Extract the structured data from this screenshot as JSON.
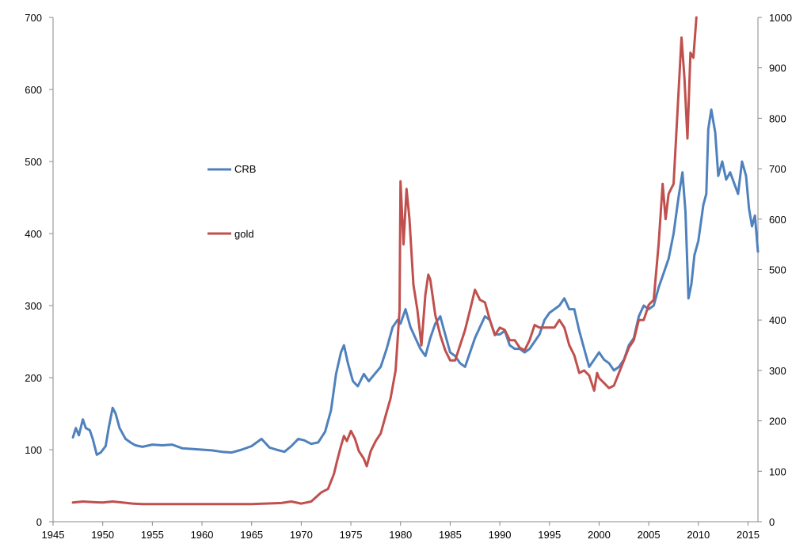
{
  "chart_data": {
    "type": "line",
    "title": "",
    "xlabel": "",
    "ylabel_left": "",
    "ylabel_right": "",
    "grid": false,
    "legend_placement": "inside-left",
    "xlim": [
      1945,
      2016
    ],
    "ylim_left": [
      0,
      700
    ],
    "ylim_right": [
      0,
      1000
    ],
    "x_ticks": [
      1945,
      1950,
      1955,
      1960,
      1965,
      1970,
      1975,
      1980,
      1985,
      1990,
      1995,
      2000,
      2005,
      2010,
      2015
    ],
    "y_left_ticks": [
      0,
      100,
      200,
      300,
      400,
      500,
      600,
      700
    ],
    "y_right_ticks": [
      0,
      100,
      200,
      300,
      400,
      500,
      600,
      700,
      800,
      900,
      1000
    ],
    "series": [
      {
        "name": "CRB",
        "axis": "left",
        "color": "#4f81bd",
        "points": [
          [
            1947.0,
            117
          ],
          [
            1947.3,
            130
          ],
          [
            1947.6,
            120
          ],
          [
            1948.0,
            142
          ],
          [
            1948.3,
            130
          ],
          [
            1948.7,
            127
          ],
          [
            1949.0,
            115
          ],
          [
            1949.4,
            93
          ],
          [
            1949.8,
            96
          ],
          [
            1950.3,
            105
          ],
          [
            1950.6,
            130
          ],
          [
            1951.0,
            158
          ],
          [
            1951.3,
            150
          ],
          [
            1951.7,
            130
          ],
          [
            1952.3,
            115
          ],
          [
            1952.8,
            110
          ],
          [
            1953.3,
            106
          ],
          [
            1954.0,
            104
          ],
          [
            1955.0,
            107
          ],
          [
            1956.0,
            106
          ],
          [
            1957.0,
            107
          ],
          [
            1958.0,
            102
          ],
          [
            1959.0,
            101
          ],
          [
            1960.0,
            100
          ],
          [
            1961.0,
            99
          ],
          [
            1962.0,
            97
          ],
          [
            1963.0,
            96
          ],
          [
            1964.0,
            100
          ],
          [
            1965.0,
            105
          ],
          [
            1966.0,
            115
          ],
          [
            1966.8,
            103
          ],
          [
            1967.5,
            100
          ],
          [
            1968.3,
            97
          ],
          [
            1969.0,
            105
          ],
          [
            1969.7,
            115
          ],
          [
            1970.3,
            113
          ],
          [
            1971.0,
            108
          ],
          [
            1971.7,
            110
          ],
          [
            1972.4,
            125
          ],
          [
            1973.0,
            155
          ],
          [
            1973.5,
            205
          ],
          [
            1974.0,
            235
          ],
          [
            1974.3,
            245
          ],
          [
            1974.7,
            220
          ],
          [
            1975.2,
            195
          ],
          [
            1975.7,
            188
          ],
          [
            1976.3,
            205
          ],
          [
            1976.8,
            195
          ],
          [
            1977.4,
            205
          ],
          [
            1978.0,
            215
          ],
          [
            1978.6,
            240
          ],
          [
            1979.2,
            270
          ],
          [
            1979.7,
            280
          ],
          [
            1980.0,
            275
          ],
          [
            1980.5,
            295
          ],
          [
            1981.0,
            270
          ],
          [
            1981.5,
            255
          ],
          [
            1982.0,
            240
          ],
          [
            1982.5,
            230
          ],
          [
            1983.0,
            255
          ],
          [
            1983.5,
            275
          ],
          [
            1984.0,
            285
          ],
          [
            1984.5,
            260
          ],
          [
            1985.0,
            235
          ],
          [
            1985.5,
            230
          ],
          [
            1986.0,
            220
          ],
          [
            1986.5,
            215
          ],
          [
            1987.0,
            235
          ],
          [
            1987.5,
            255
          ],
          [
            1988.0,
            270
          ],
          [
            1988.5,
            285
          ],
          [
            1989.0,
            280
          ],
          [
            1989.5,
            260
          ],
          [
            1990.0,
            260
          ],
          [
            1990.5,
            265
          ],
          [
            1991.0,
            245
          ],
          [
            1991.5,
            240
          ],
          [
            1992.0,
            240
          ],
          [
            1992.5,
            235
          ],
          [
            1993.0,
            240
          ],
          [
            1993.5,
            250
          ],
          [
            1994.0,
            260
          ],
          [
            1994.5,
            280
          ],
          [
            1995.0,
            290
          ],
          [
            1995.5,
            295
          ],
          [
            1996.0,
            300
          ],
          [
            1996.5,
            310
          ],
          [
            1997.0,
            295
          ],
          [
            1997.5,
            295
          ],
          [
            1998.0,
            265
          ],
          [
            1998.5,
            240
          ],
          [
            1999.0,
            215
          ],
          [
            1999.5,
            225
          ],
          [
            2000.0,
            235
          ],
          [
            2000.5,
            225
          ],
          [
            2001.0,
            220
          ],
          [
            2001.5,
            210
          ],
          [
            2002.0,
            215
          ],
          [
            2002.5,
            225
          ],
          [
            2003.0,
            245
          ],
          [
            2003.5,
            255
          ],
          [
            2004.0,
            285
          ],
          [
            2004.5,
            300
          ],
          [
            2005.0,
            295
          ],
          [
            2005.5,
            300
          ],
          [
            2006.0,
            325
          ],
          [
            2006.5,
            345
          ],
          [
            2007.0,
            365
          ],
          [
            2007.5,
            400
          ],
          [
            2008.0,
            450
          ],
          [
            2008.4,
            485
          ],
          [
            2008.7,
            430
          ],
          [
            2009.0,
            310
          ],
          [
            2009.3,
            330
          ],
          [
            2009.6,
            370
          ],
          [
            2010.0,
            390
          ],
          [
            2010.5,
            440
          ],
          [
            2010.8,
            455
          ],
          [
            2011.0,
            545
          ],
          [
            2011.3,
            572
          ],
          [
            2011.7,
            540
          ],
          [
            2012.0,
            480
          ],
          [
            2012.4,
            500
          ],
          [
            2012.8,
            475
          ],
          [
            2013.2,
            485
          ],
          [
            2013.6,
            470
          ],
          [
            2014.0,
            455
          ],
          [
            2014.4,
            500
          ],
          [
            2014.8,
            480
          ],
          [
            2015.1,
            435
          ],
          [
            2015.4,
            410
          ],
          [
            2015.7,
            425
          ],
          [
            2016.0,
            375
          ]
        ]
      },
      {
        "name": "gold",
        "axis": "right",
        "color": "#c0504d",
        "points": [
          [
            1947.0,
            38
          ],
          [
            1948.0,
            40
          ],
          [
            1949.0,
            39
          ],
          [
            1950.0,
            38
          ],
          [
            1951.0,
            40
          ],
          [
            1952.0,
            38
          ],
          [
            1953.0,
            36
          ],
          [
            1954.0,
            35
          ],
          [
            1955.0,
            35
          ],
          [
            1960.0,
            35
          ],
          [
            1965.0,
            35
          ],
          [
            1968.0,
            37
          ],
          [
            1969.0,
            40
          ],
          [
            1970.0,
            36
          ],
          [
            1971.0,
            40
          ],
          [
            1972.0,
            58
          ],
          [
            1972.7,
            65
          ],
          [
            1973.3,
            95
          ],
          [
            1973.6,
            120
          ],
          [
            1974.0,
            150
          ],
          [
            1974.3,
            170
          ],
          [
            1974.6,
            160
          ],
          [
            1975.0,
            180
          ],
          [
            1975.4,
            165
          ],
          [
            1975.8,
            140
          ],
          [
            1976.3,
            125
          ],
          [
            1976.6,
            110
          ],
          [
            1977.0,
            140
          ],
          [
            1977.5,
            160
          ],
          [
            1978.0,
            175
          ],
          [
            1978.5,
            210
          ],
          [
            1979.0,
            245
          ],
          [
            1979.5,
            300
          ],
          [
            1979.9,
            420
          ],
          [
            1980.0,
            675
          ],
          [
            1980.3,
            550
          ],
          [
            1980.6,
            660
          ],
          [
            1980.9,
            600
          ],
          [
            1981.3,
            470
          ],
          [
            1981.7,
            420
          ],
          [
            1982.1,
            350
          ],
          [
            1982.5,
            450
          ],
          [
            1982.8,
            490
          ],
          [
            1983.0,
            480
          ],
          [
            1983.5,
            410
          ],
          [
            1984.0,
            370
          ],
          [
            1984.5,
            340
          ],
          [
            1985.0,
            320
          ],
          [
            1985.5,
            320
          ],
          [
            1986.0,
            350
          ],
          [
            1986.5,
            380
          ],
          [
            1987.0,
            420
          ],
          [
            1987.5,
            460
          ],
          [
            1988.0,
            440
          ],
          [
            1988.5,
            435
          ],
          [
            1989.0,
            400
          ],
          [
            1989.5,
            370
          ],
          [
            1990.0,
            385
          ],
          [
            1990.5,
            380
          ],
          [
            1991.0,
            360
          ],
          [
            1991.5,
            360
          ],
          [
            1992.0,
            345
          ],
          [
            1992.5,
            340
          ],
          [
            1993.0,
            360
          ],
          [
            1993.5,
            390
          ],
          [
            1994.0,
            385
          ],
          [
            1994.5,
            385
          ],
          [
            1995.0,
            385
          ],
          [
            1995.5,
            385
          ],
          [
            1996.0,
            400
          ],
          [
            1996.5,
            385
          ],
          [
            1997.0,
            350
          ],
          [
            1997.5,
            330
          ],
          [
            1998.0,
            295
          ],
          [
            1998.5,
            300
          ],
          [
            1999.0,
            290
          ],
          [
            1999.5,
            260
          ],
          [
            1999.8,
            295
          ],
          [
            2000.0,
            285
          ],
          [
            2000.5,
            275
          ],
          [
            2001.0,
            265
          ],
          [
            2001.5,
            270
          ],
          [
            2002.0,
            295
          ],
          [
            2002.5,
            320
          ],
          [
            2003.0,
            345
          ],
          [
            2003.5,
            360
          ],
          [
            2004.0,
            400
          ],
          [
            2004.5,
            400
          ],
          [
            2005.0,
            430
          ],
          [
            2005.5,
            440
          ],
          [
            2006.0,
            550
          ],
          [
            2006.4,
            670
          ],
          [
            2006.7,
            600
          ],
          [
            2007.0,
            650
          ],
          [
            2007.5,
            670
          ],
          [
            2008.0,
            850
          ],
          [
            2008.3,
            960
          ],
          [
            2008.6,
            880
          ],
          [
            2008.9,
            760
          ],
          [
            2009.2,
            930
          ],
          [
            2009.5,
            920
          ],
          [
            2009.8,
            1000
          ]
        ]
      }
    ]
  },
  "legend": {
    "crb_label": "CRB",
    "gold_label": "gold"
  }
}
